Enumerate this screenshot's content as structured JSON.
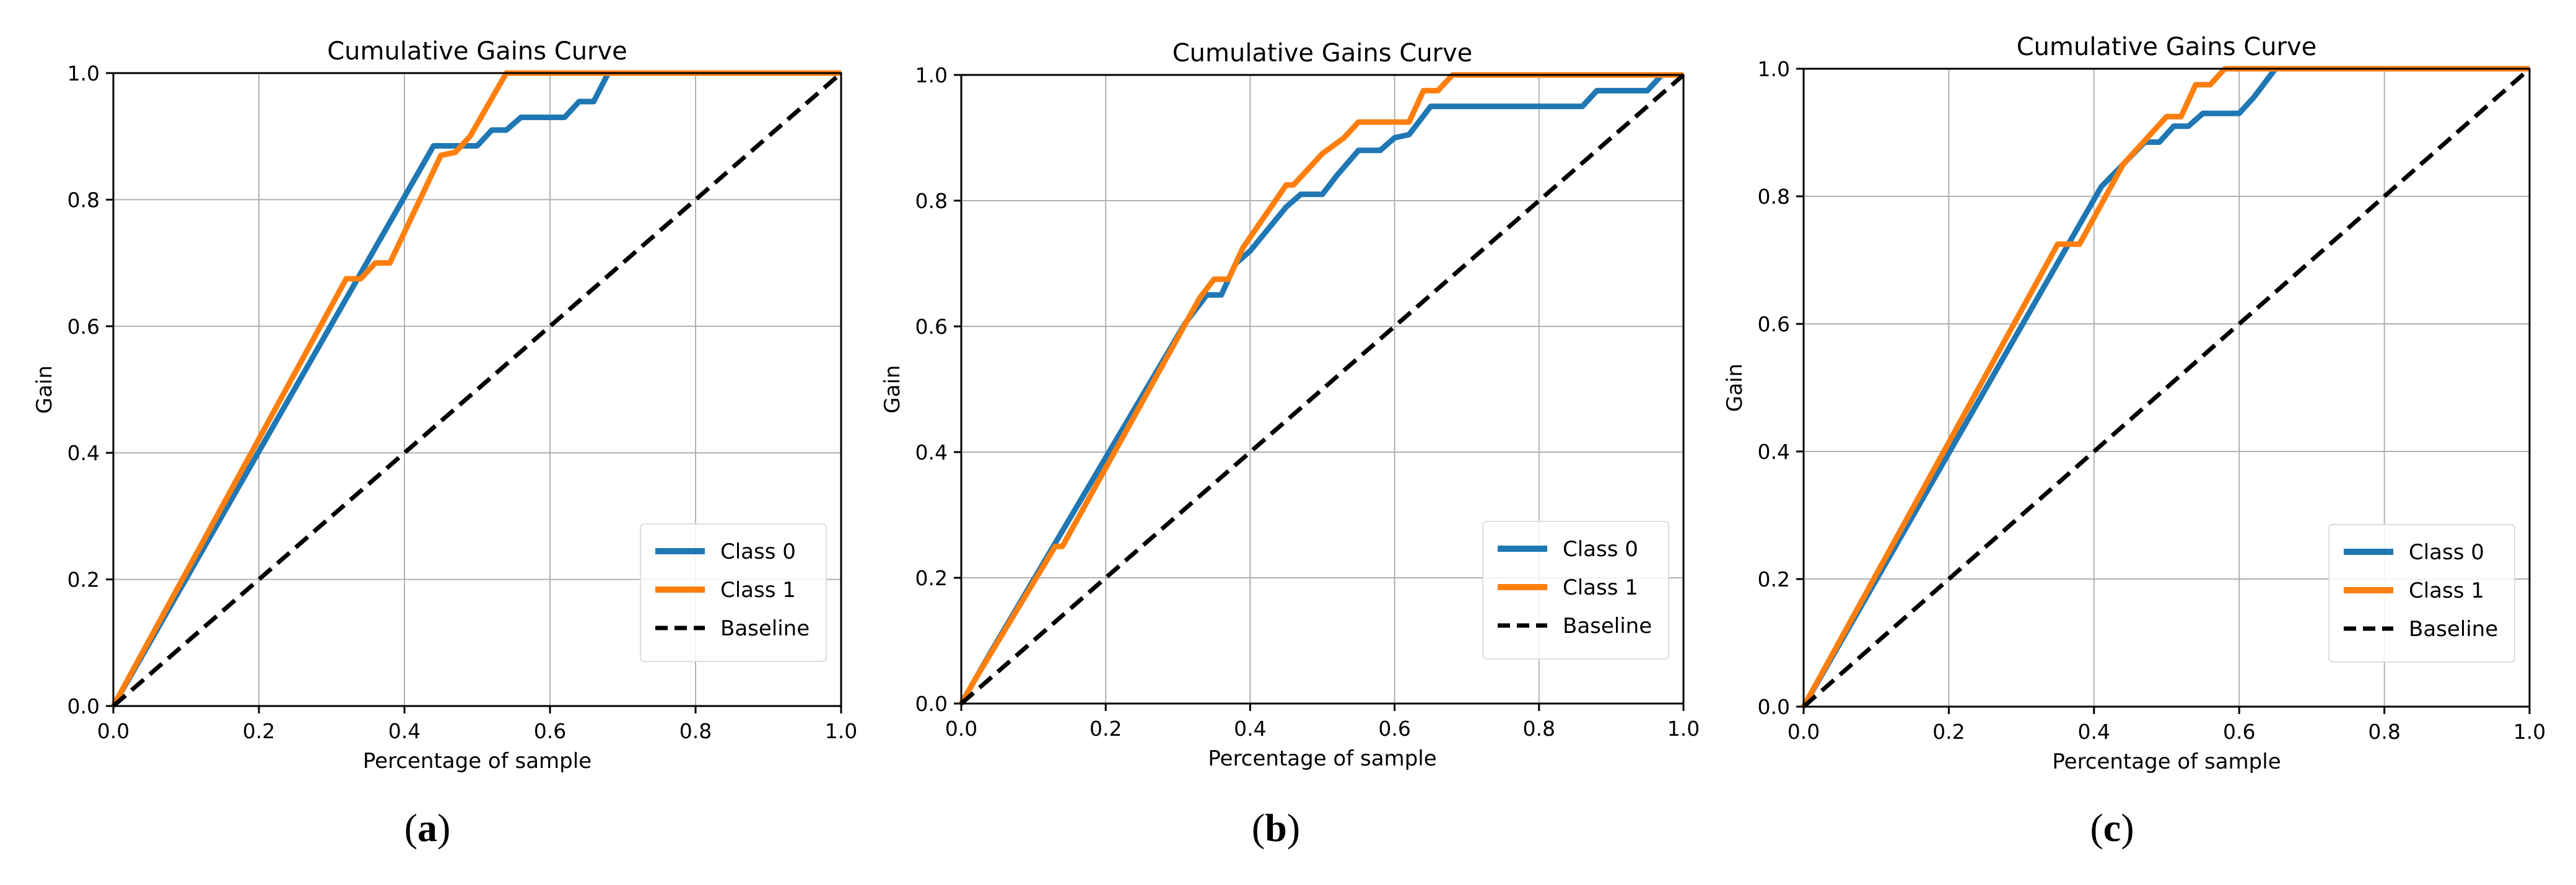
{
  "colors": {
    "class0": "#1f77b4",
    "class1": "#ff7f0e",
    "baseline": "#000000",
    "grid": "#b0b0b0"
  },
  "chart_data": [
    {
      "type": "line",
      "panel": "a",
      "title": "Cumulative Gains Curve",
      "xlabel": "Percentage of sample",
      "ylabel": "Gain",
      "xlim": [
        0,
        1
      ],
      "ylim": [
        0,
        1
      ],
      "xticks": [
        "0.0",
        "0.2",
        "0.4",
        "0.6",
        "0.8",
        "1.0"
      ],
      "yticks": [
        "0.0",
        "0.2",
        "0.4",
        "0.6",
        "0.8",
        "1.0"
      ],
      "grid": true,
      "legend": "bottom-right",
      "series": [
        {
          "name": "Class 0",
          "color_key": "class0",
          "x": [
            0,
            0.44,
            0.46,
            0.48,
            0.5,
            0.52,
            0.54,
            0.56,
            0.62,
            0.64,
            0.66,
            0.68,
            1.0
          ],
          "y": [
            0,
            0.885,
            0.885,
            0.885,
            0.885,
            0.91,
            0.91,
            0.93,
            0.93,
            0.955,
            0.955,
            1.0,
            1.0
          ]
        },
        {
          "name": "Class 1",
          "color_key": "class1",
          "x": [
            0,
            0.32,
            0.34,
            0.36,
            0.38,
            0.45,
            0.47,
            0.49,
            0.54,
            1.0
          ],
          "y": [
            0,
            0.675,
            0.675,
            0.7,
            0.7,
            0.87,
            0.875,
            0.9,
            1.0,
            1.0
          ]
        },
        {
          "name": "Baseline",
          "color_key": "baseline",
          "dashed": true,
          "x": [
            0,
            1
          ],
          "y": [
            0,
            1
          ]
        }
      ]
    },
    {
      "type": "line",
      "panel": "b",
      "title": "Cumulative Gains Curve",
      "xlabel": "Percentage of sample",
      "ylabel": "Gain",
      "xlim": [
        0,
        1
      ],
      "ylim": [
        0,
        1
      ],
      "xticks": [
        "0.0",
        "0.2",
        "0.4",
        "0.6",
        "0.8",
        "1.0"
      ],
      "yticks": [
        "0.0",
        "0.2",
        "0.4",
        "0.6",
        "0.8",
        "1.0"
      ],
      "grid": true,
      "legend": "bottom-right",
      "series": [
        {
          "name": "Class 0",
          "color_key": "class0",
          "x": [
            0,
            0.04,
            0.31,
            0.34,
            0.36,
            0.38,
            0.4,
            0.45,
            0.47,
            0.5,
            0.52,
            0.55,
            0.58,
            0.6,
            0.62,
            0.65,
            0.86,
            0.88,
            0.95,
            0.97,
            1.0
          ],
          "y": [
            0,
            0.08,
            0.605,
            0.65,
            0.65,
            0.7,
            0.72,
            0.79,
            0.81,
            0.81,
            0.84,
            0.88,
            0.88,
            0.9,
            0.905,
            0.95,
            0.95,
            0.975,
            0.975,
            1.0,
            1.0
          ]
        },
        {
          "name": "Class 1",
          "color_key": "class1",
          "x": [
            0,
            0.02,
            0.13,
            0.14,
            0.33,
            0.35,
            0.37,
            0.39,
            0.45,
            0.46,
            0.48,
            0.5,
            0.53,
            0.55,
            0.62,
            0.64,
            0.66,
            0.68,
            1.0
          ],
          "y": [
            0,
            0.04,
            0.25,
            0.25,
            0.645,
            0.675,
            0.675,
            0.725,
            0.825,
            0.825,
            0.85,
            0.875,
            0.9,
            0.925,
            0.925,
            0.975,
            0.975,
            1.0,
            1.0
          ]
        },
        {
          "name": "Baseline",
          "color_key": "baseline",
          "dashed": true,
          "x": [
            0,
            1
          ],
          "y": [
            0,
            1
          ]
        }
      ]
    },
    {
      "type": "line",
      "panel": "c",
      "title": "Cumulative Gains Curve",
      "xlabel": "Percentage of sample",
      "ylabel": "Gain",
      "xlim": [
        0,
        1
      ],
      "ylim": [
        0,
        1
      ],
      "xticks": [
        "0.0",
        "0.2",
        "0.4",
        "0.6",
        "0.8",
        "1.0"
      ],
      "yticks": [
        "0.0",
        "0.2",
        "0.4",
        "0.6",
        "0.8",
        "1.0"
      ],
      "grid": true,
      "legend": "bottom-right",
      "series": [
        {
          "name": "Class 0",
          "color_key": "class0",
          "x": [
            0,
            0.41,
            0.47,
            0.49,
            0.51,
            0.53,
            0.55,
            0.6,
            0.62,
            0.65,
            1.0
          ],
          "y": [
            0,
            0.815,
            0.885,
            0.885,
            0.91,
            0.91,
            0.93,
            0.93,
            0.955,
            1.0,
            1.0
          ]
        },
        {
          "name": "Class 1",
          "color_key": "class1",
          "x": [
            0,
            0.35,
            0.38,
            0.44,
            0.46,
            0.48,
            0.5,
            0.52,
            0.54,
            0.56,
            0.58,
            0.6,
            1.0
          ],
          "y": [
            0,
            0.725,
            0.725,
            0.85,
            0.875,
            0.9,
            0.925,
            0.925,
            0.975,
            0.975,
            1.0,
            1.0,
            1.0
          ]
        },
        {
          "name": "Baseline",
          "color_key": "baseline",
          "dashed": true,
          "x": [
            0,
            1
          ],
          "y": [
            0,
            1
          ]
        }
      ]
    }
  ],
  "captions": [
    {
      "paren_open": "(",
      "letter": "a",
      "paren_close": ")"
    },
    {
      "paren_open": "(",
      "letter": "b",
      "paren_close": ")"
    },
    {
      "paren_open": "(",
      "letter": "c",
      "paren_close": ")"
    }
  ]
}
